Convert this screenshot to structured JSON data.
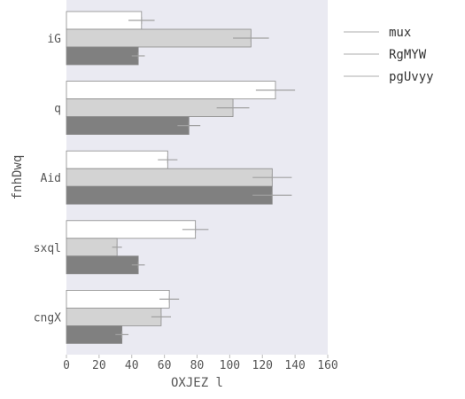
{
  "chart_data": {
    "type": "bar",
    "orientation": "horizontal",
    "categories": [
      "iG",
      "q",
      "Aid",
      "sxql",
      "cngX"
    ],
    "series": [
      {
        "name": "mux",
        "color": "#ffffff",
        "values": [
          46,
          128,
          62,
          79,
          63
        ],
        "errors": [
          8,
          12,
          6,
          8,
          6
        ]
      },
      {
        "name": "RgMYW",
        "color": "#d3d3d3",
        "values": [
          113,
          102,
          126,
          31,
          58
        ],
        "errors": [
          11,
          10,
          12,
          3,
          6
        ]
      },
      {
        "name": "pgUvyy",
        "color": "#808080",
        "values": [
          44,
          75,
          126,
          44,
          34
        ],
        "errors": [
          4,
          7,
          12,
          4,
          4
        ]
      }
    ],
    "xlabel": "OXJEZ l",
    "ylabel": "fnhDwq",
    "xlim": [
      0,
      160
    ],
    "xticks": [
      "0",
      "20",
      "40",
      "60",
      "80",
      "100",
      "120",
      "140",
      "160"
    ],
    "grid": false,
    "legend_position": "outside-right"
  },
  "colors": {
    "plot_background": "#eaeaf2",
    "bar_edge": "#8a8a8a",
    "error_bar": "#a0a0a0"
  }
}
